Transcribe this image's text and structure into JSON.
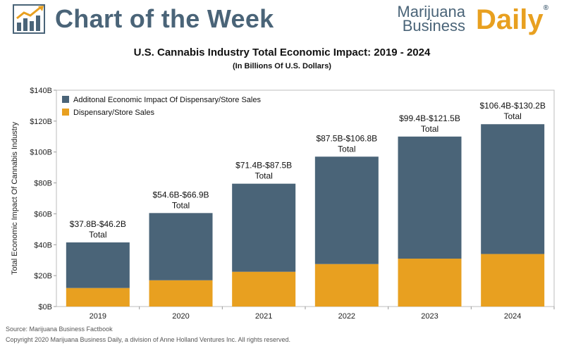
{
  "header": {
    "title": "Chart of the Week",
    "brand_line1": "Marijuana",
    "brand_line2": "Business",
    "brand_daily": "Daily",
    "brand_mark": "®"
  },
  "colors": {
    "accent": "#4a6478",
    "brand_orange": "#e8a020",
    "dark_series": "#4a6478",
    "orange_series": "#e8a020"
  },
  "chart_data": {
    "type": "bar",
    "stacked": true,
    "title": "U.S. Cannabis Industry Total Economic Impact: 2019 - 2024",
    "subtitle": "(In Billions Of U.S. Dollars)",
    "xlabel": "",
    "ylabel": "Total Economic Impact Of Cannabis Industry",
    "categories": [
      "2019",
      "2020",
      "2021",
      "2022",
      "2023",
      "2024"
    ],
    "ylim": [
      0,
      140
    ],
    "yticks": [
      0,
      20,
      40,
      60,
      80,
      100,
      120,
      140
    ],
    "ytick_labels": [
      "$0B",
      "$20B",
      "$40B",
      "$60B",
      "$80B",
      "$100B",
      "$120B",
      "$140B"
    ],
    "grid": false,
    "legend_position": "top-left",
    "series": [
      {
        "name": "Dispensary/Store Sales",
        "color": "#e8a020",
        "values": [
          12,
          17,
          22.5,
          27.5,
          31,
          34
        ]
      },
      {
        "name": "Additonal Economic Impact Of Dispensary/Store Sales",
        "color": "#4a6478",
        "values": [
          29.5,
          43.5,
          57,
          69.5,
          79,
          84
        ]
      }
    ],
    "annotations": [
      {
        "category": "2019",
        "line1": "$37.8B-$46.2B",
        "line2": "Total"
      },
      {
        "category": "2020",
        "line1": "$54.6B-$66.9B",
        "line2": "Total"
      },
      {
        "category": "2021",
        "line1": "$71.4B-$87.5B",
        "line2": "Total"
      },
      {
        "category": "2022",
        "line1": "$87.5B-$106.8B",
        "line2": "Total"
      },
      {
        "category": "2023",
        "line1": "$99.4B-$121.5B",
        "line2": "Total"
      },
      {
        "category": "2024",
        "line1": "$106.4B-$130.2B",
        "line2": "Total"
      }
    ]
  },
  "footer": {
    "source": "Source: Marijuana Business Factbook",
    "copyright": "Copyright 2020 Marijuana Business Daily, a division of Anne Holland Ventures Inc. All rights reserved."
  }
}
